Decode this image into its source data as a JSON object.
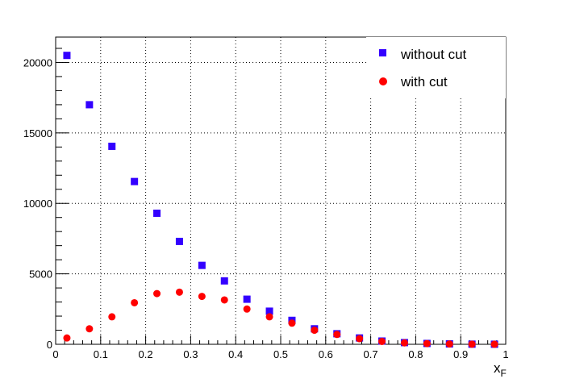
{
  "chart_data": {
    "type": "scatter",
    "title": "",
    "xlabel": "x",
    "xlabel_subscript": "F",
    "ylabel": "",
    "xlim": [
      0,
      1
    ],
    "ylim": [
      0,
      21800
    ],
    "grid": true,
    "legend_placement": "top-right",
    "x_ticks": [
      0,
      0.1,
      0.2,
      0.3,
      0.4,
      0.5,
      0.6,
      0.7,
      0.8,
      0.9,
      1
    ],
    "x_tick_labels": [
      "0",
      "0.1",
      "0.2",
      "0.3",
      "0.4",
      "0.5",
      "0.6",
      "0.7",
      "0.8",
      "0.9",
      "1"
    ],
    "y_ticks": [
      0,
      5000,
      10000,
      15000,
      20000
    ],
    "y_tick_labels": [
      "0",
      "5000",
      "10000",
      "15000",
      "20000"
    ],
    "series": [
      {
        "name": "without cut",
        "marker": "square",
        "color": "#3300ff",
        "x": [
          0.025,
          0.075,
          0.125,
          0.175,
          0.225,
          0.275,
          0.325,
          0.375,
          0.425,
          0.475,
          0.525,
          0.575,
          0.625,
          0.675,
          0.725,
          0.775,
          0.825,
          0.875,
          0.925,
          0.975
        ],
        "y": [
          20500,
          17000,
          14050,
          11550,
          9300,
          7300,
          5600,
          4500,
          3200,
          2350,
          1700,
          1100,
          750,
          450,
          230,
          120,
          60,
          30,
          10,
          5
        ]
      },
      {
        "name": "with cut",
        "marker": "circle",
        "color": "#ff0000",
        "x": [
          0.025,
          0.075,
          0.125,
          0.175,
          0.225,
          0.275,
          0.325,
          0.375,
          0.425,
          0.475,
          0.525,
          0.575,
          0.625,
          0.675,
          0.725,
          0.775,
          0.825,
          0.875,
          0.925,
          0.975
        ],
        "y": [
          450,
          1100,
          1950,
          2950,
          3600,
          3700,
          3400,
          3150,
          2500,
          1950,
          1500,
          1000,
          700,
          400,
          200,
          100,
          50,
          25,
          10,
          5
        ]
      }
    ]
  }
}
